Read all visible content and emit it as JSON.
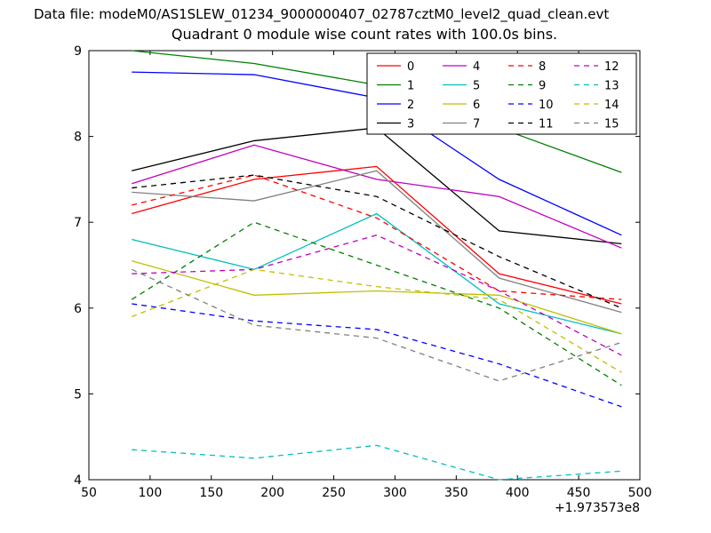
{
  "header": {
    "data_file": "Data file: modeM0/AS1SLEW_01234_9000000407_02787cztM0_level2_quad_clean.evt"
  },
  "chart_data": {
    "type": "line",
    "title": "Quadrant 0 module wise count rates with 100.0s bins.",
    "xlabel": "",
    "ylabel": "",
    "x_offset_label": "+1.973573e8",
    "xlim": [
      50,
      500
    ],
    "ylim": [
      4,
      9
    ],
    "x_ticks": [
      50,
      100,
      150,
      200,
      250,
      300,
      350,
      400,
      450,
      500
    ],
    "y_ticks": [
      4,
      5,
      6,
      7,
      8,
      9
    ],
    "grid": false,
    "legend_position": "upper center, 4 columns",
    "x": [
      85,
      185,
      285,
      385,
      485
    ],
    "series": [
      {
        "name": "0",
        "color": "#ff0000",
        "dash": false,
        "values": [
          7.1,
          7.5,
          7.65,
          6.4,
          6.05
        ]
      },
      {
        "name": "1",
        "color": "#008000",
        "dash": false,
        "values": [
          9.0,
          8.85,
          8.6,
          8.1,
          7.58
        ]
      },
      {
        "name": "2",
        "color": "#0000ff",
        "dash": false,
        "values": [
          8.75,
          8.72,
          8.45,
          7.5,
          6.85
        ]
      },
      {
        "name": "3",
        "color": "#000000",
        "dash": false,
        "values": [
          7.6,
          7.95,
          8.1,
          6.9,
          6.75
        ]
      },
      {
        "name": "4",
        "color": "#bf00bf",
        "dash": false,
        "values": [
          7.45,
          7.9,
          7.5,
          7.3,
          6.7
        ]
      },
      {
        "name": "5",
        "color": "#00bfbf",
        "dash": false,
        "values": [
          6.8,
          6.45,
          7.1,
          6.05,
          5.7
        ]
      },
      {
        "name": "6",
        "color": "#bfbf00",
        "dash": false,
        "values": [
          6.55,
          6.15,
          6.2,
          6.15,
          5.7
        ]
      },
      {
        "name": "7",
        "color": "#808080",
        "dash": false,
        "values": [
          7.35,
          7.25,
          7.6,
          6.35,
          5.95
        ]
      },
      {
        "name": "8",
        "color": "#ff0000",
        "dash": true,
        "values": [
          7.2,
          7.55,
          7.05,
          6.2,
          6.1
        ]
      },
      {
        "name": "9",
        "color": "#008000",
        "dash": true,
        "values": [
          6.1,
          7.0,
          6.5,
          6.0,
          5.1
        ]
      },
      {
        "name": "10",
        "color": "#0000ff",
        "dash": true,
        "values": [
          6.05,
          5.85,
          5.75,
          5.35,
          4.85
        ]
      },
      {
        "name": "11",
        "color": "#000000",
        "dash": true,
        "values": [
          7.4,
          7.55,
          7.3,
          6.6,
          6.0
        ]
      },
      {
        "name": "12",
        "color": "#bf00bf",
        "dash": true,
        "values": [
          6.4,
          6.45,
          6.85,
          6.2,
          5.45
        ]
      },
      {
        "name": "13",
        "color": "#00bfbf",
        "dash": true,
        "values": [
          4.35,
          4.25,
          4.4,
          4.0,
          4.1
        ]
      },
      {
        "name": "14",
        "color": "#bfbf00",
        "dash": true,
        "values": [
          5.9,
          6.45,
          6.25,
          6.1,
          5.25
        ]
      },
      {
        "name": "15",
        "color": "#808080",
        "dash": true,
        "values": [
          6.45,
          5.8,
          5.65,
          5.15,
          5.6
        ]
      }
    ]
  }
}
